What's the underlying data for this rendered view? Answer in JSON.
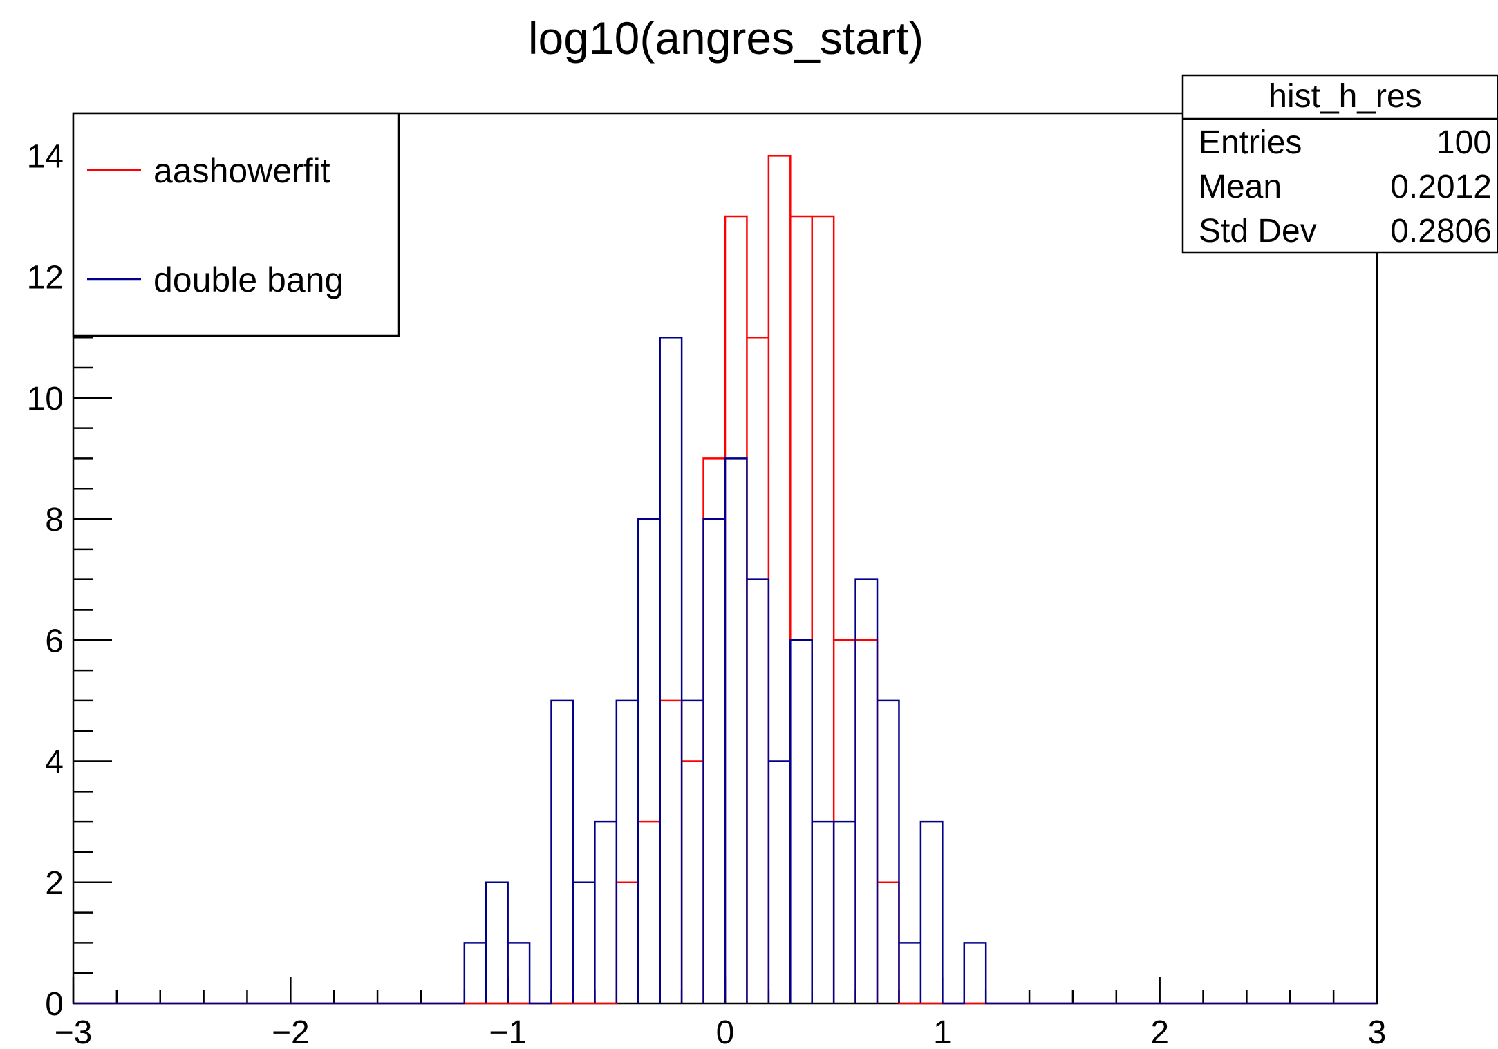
{
  "chart_data": {
    "type": "bar",
    "title": "log10(angres_start)",
    "xlabel": "",
    "ylabel": "",
    "xlim": [
      -3,
      3
    ],
    "ylim": [
      0,
      14.7
    ],
    "bin_width": 0.1,
    "x_ticks": [
      -3,
      -2,
      -1,
      0,
      1,
      2,
      3
    ],
    "x_tick_labels": [
      "−3",
      "−2",
      "−1",
      "0",
      "1",
      "2",
      "3"
    ],
    "y_ticks": [
      0,
      2,
      4,
      6,
      8,
      10,
      12,
      14
    ],
    "y_tick_labels": [
      "0",
      "2",
      "4",
      "6",
      "8",
      "10",
      "12",
      "14"
    ],
    "grid": false,
    "series": [
      {
        "name": "aashowerfit",
        "color": "#ff0000",
        "x_lo": [
          -0.5,
          -0.4,
          -0.3,
          -0.2,
          -0.1,
          0.0,
          0.1,
          0.2,
          0.3,
          0.4,
          0.5,
          0.6,
          0.7
        ],
        "values": [
          2,
          3,
          5,
          4,
          9,
          13,
          11,
          14,
          13,
          13,
          6,
          6,
          2
        ]
      },
      {
        "name": "double bang",
        "color": "#00008b",
        "x_lo": [
          -1.2,
          -1.1,
          -1.0,
          -0.9,
          -0.8,
          -0.7,
          -0.6,
          -0.5,
          -0.4,
          -0.3,
          -0.2,
          -0.1,
          0.0,
          0.1,
          0.2,
          0.3,
          0.4,
          0.5,
          0.6,
          0.7,
          0.8,
          0.9,
          1.0,
          1.1
        ],
        "values": [
          1,
          2,
          1,
          0,
          5,
          2,
          3,
          5,
          8,
          11,
          5,
          8,
          9,
          7,
          4,
          6,
          3,
          3,
          7,
          5,
          1,
          3,
          0,
          1
        ]
      }
    ],
    "legend": {
      "position": "top-left",
      "entries": [
        {
          "label": "aashowerfit",
          "color": "#ff0000"
        },
        {
          "label": "double bang",
          "color": "#00008b"
        }
      ]
    },
    "stats_box": {
      "position": "top-right",
      "title": "hist_h_res",
      "rows": [
        {
          "label": "Entries",
          "value": "100"
        },
        {
          "label": "Mean",
          "value": "0.2012"
        },
        {
          "label": "Std Dev",
          "value": "0.2806"
        }
      ]
    }
  }
}
